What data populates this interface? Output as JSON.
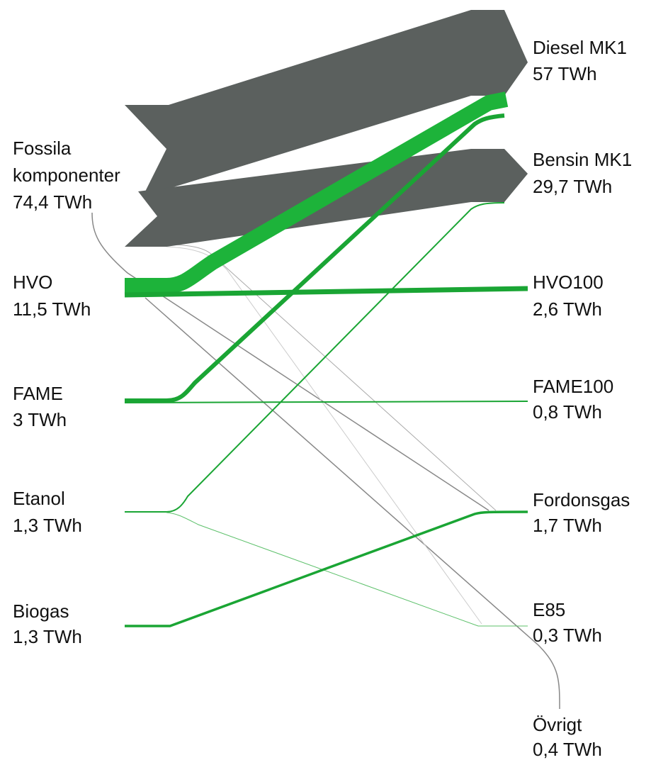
{
  "sources": [
    {
      "label": [
        "Fossila",
        "komponenter"
      ],
      "value": "74,4 TWh"
    },
    {
      "label": [
        "HVO"
      ],
      "value": "11,5 TWh"
    },
    {
      "label": [
        "FAME"
      ],
      "value": "3 TWh"
    },
    {
      "label": [
        "Etanol"
      ],
      "value": "1,3 TWh"
    },
    {
      "label": [
        "Biogas"
      ],
      "value": "1,3 TWh"
    }
  ],
  "targets": [
    {
      "label": "Diesel MK1",
      "value": "57 TWh"
    },
    {
      "label": "Bensin MK1",
      "value": "29,7 TWh"
    },
    {
      "label": "HVO100",
      "value": "2,6 TWh"
    },
    {
      "label": "FAME100",
      "value": "0,8 TWh"
    },
    {
      "label": "Fordonsgas",
      "value": "1,7 TWh"
    },
    {
      "label": "E85",
      "value": "0,3 TWh"
    },
    {
      "label": "Övrigt",
      "value": "0,4 TWh"
    }
  ]
}
